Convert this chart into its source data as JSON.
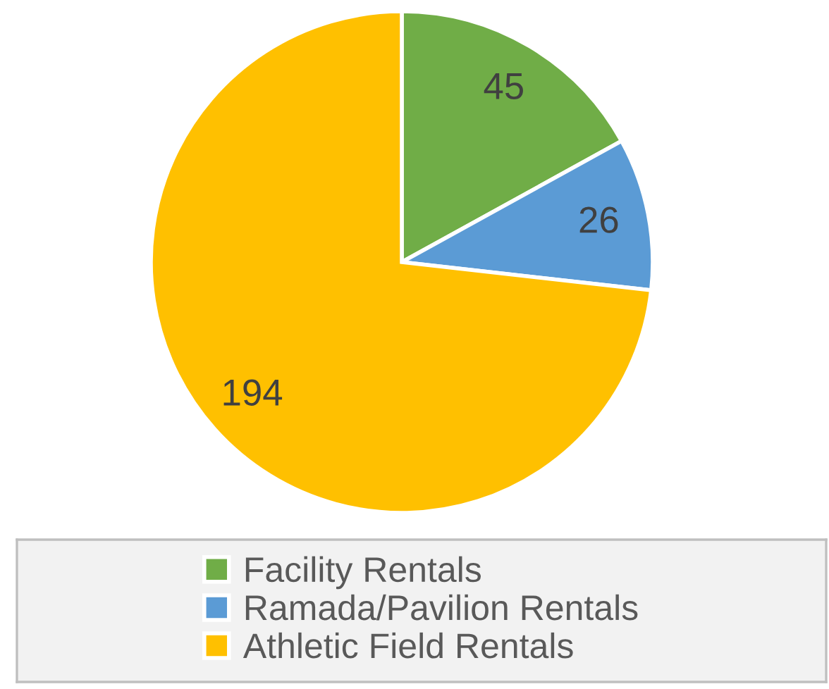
{
  "chart_data": {
    "type": "pie",
    "categories": [
      "Facility Rentals",
      "Ramada/Pavilion Rentals",
      "Athletic Field Rentals"
    ],
    "values": [
      45,
      26,
      194
    ],
    "colors": [
      "#70ad47",
      "#5b9bd5",
      "#ffc000"
    ],
    "data_labels": true,
    "legend": "bottom"
  }
}
